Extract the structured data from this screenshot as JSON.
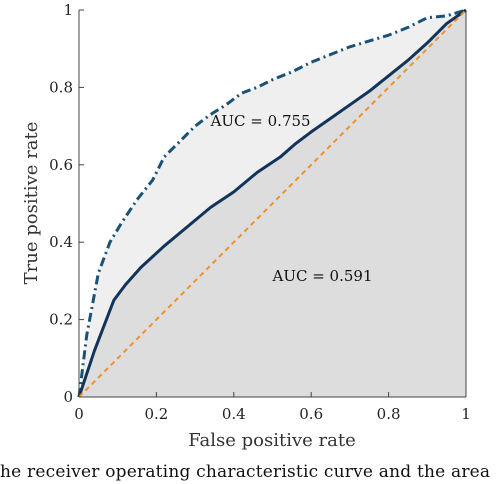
{
  "chart_data": {
    "type": "line",
    "xlabel": "False positive rate",
    "ylabel": "True positive rate",
    "xlim": [
      0,
      1
    ],
    "ylim": [
      0,
      1
    ],
    "x_ticks": [
      "0",
      "0.2",
      "0.4",
      "0.6",
      "0.8",
      "1"
    ],
    "y_ticks": [
      "0",
      "0.2",
      "0.4",
      "0.6",
      "0.8",
      "1"
    ],
    "grid": false,
    "legend": "none",
    "series": [
      {
        "style": "dash-dot",
        "color": "#1a5276",
        "fill": "#efefef",
        "x": [
          0,
          0.02,
          0.05,
          0.08,
          0.11,
          0.15,
          0.19,
          0.22,
          0.26,
          0.3,
          0.34,
          0.38,
          0.42,
          0.46,
          0.5,
          0.55,
          0.6,
          0.65,
          0.7,
          0.75,
          0.8,
          0.85,
          0.9,
          0.95,
          1
        ],
        "y": [
          0,
          0.16,
          0.32,
          0.4,
          0.45,
          0.51,
          0.56,
          0.62,
          0.66,
          0.7,
          0.73,
          0.755,
          0.785,
          0.8,
          0.82,
          0.84,
          0.865,
          0.885,
          0.905,
          0.92,
          0.935,
          0.955,
          0.98,
          0.985,
          1
        ]
      },
      {
        "style": "solid",
        "color": "#12345a",
        "fill": "#dddddd",
        "x": [
          0,
          0.04,
          0.09,
          0.12,
          0.16,
          0.22,
          0.28,
          0.34,
          0.4,
          0.46,
          0.52,
          0.56,
          0.6,
          0.65,
          0.7,
          0.75,
          0.8,
          0.85,
          0.9,
          0.95,
          1
        ],
        "y": [
          0,
          0.12,
          0.25,
          0.29,
          0.335,
          0.39,
          0.44,
          0.49,
          0.53,
          0.58,
          0.62,
          0.655,
          0.685,
          0.72,
          0.755,
          0.79,
          0.83,
          0.87,
          0.915,
          0.965,
          1
        ]
      },
      {
        "style": "dashed",
        "color": "#f0902a",
        "x": [
          0,
          1
        ],
        "y": [
          0,
          1
        ]
      }
    ],
    "annotations": [
      {
        "text": "AUC = 0.755",
        "x": 0.34,
        "y": 0.7
      },
      {
        "text": "AUC = 0.591",
        "x": 0.5,
        "y": 0.3
      }
    ]
  },
  "caption": "he receiver operating characteristic curve and the area"
}
